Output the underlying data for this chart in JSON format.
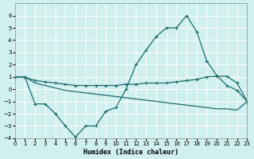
{
  "xlabel": "Humidex (Indice chaleur)",
  "background_color": "#cff0ee",
  "grid_color": "#ffffff",
  "line_color": "#1a6b6b",
  "xlim": [
    0,
    23
  ],
  "ylim": [
    -4,
    7
  ],
  "yticks": [
    -4,
    -3,
    -2,
    -1,
    0,
    1,
    2,
    3,
    4,
    5,
    6
  ],
  "xticks": [
    0,
    1,
    2,
    3,
    4,
    5,
    6,
    7,
    8,
    9,
    10,
    11,
    12,
    13,
    14,
    15,
    16,
    17,
    18,
    19,
    20,
    21,
    22,
    23
  ],
  "humidex_x": [
    0,
    1,
    2,
    3,
    4,
    5,
    6,
    7,
    8,
    9,
    10,
    11,
    12,
    13,
    14,
    15,
    16,
    17,
    18,
    19,
    20,
    21,
    22,
    23
  ],
  "humidex_y": [
    1.0,
    1.0,
    -1.2,
    -1.2,
    -2.0,
    -3.0,
    -3.9,
    -3.0,
    -3.0,
    -1.8,
    -1.5,
    0.0,
    2.0,
    3.2,
    4.3,
    5.0,
    5.0,
    6.0,
    4.7,
    2.3,
    1.1,
    0.3,
    -0.1,
    -1.0
  ],
  "upper_x": [
    0,
    1,
    2,
    3,
    4,
    5,
    6,
    7,
    8,
    9,
    10,
    11,
    12,
    13,
    14,
    15,
    16,
    17,
    18,
    19,
    20,
    21,
    22,
    23
  ],
  "upper_y": [
    1.0,
    1.0,
    0.7,
    0.6,
    0.5,
    0.4,
    0.3,
    0.3,
    0.3,
    0.3,
    0.3,
    0.4,
    0.4,
    0.5,
    0.5,
    0.5,
    0.6,
    0.7,
    0.8,
    1.0,
    1.05,
    1.05,
    0.5,
    -1.0
  ],
  "lower_x": [
    0,
    1,
    2,
    3,
    4,
    5,
    6,
    7,
    8,
    9,
    10,
    11,
    12,
    13,
    14,
    15,
    16,
    17,
    18,
    19,
    20,
    21,
    22,
    23
  ],
  "lower_y": [
    1.0,
    1.0,
    0.5,
    0.3,
    0.1,
    -0.1,
    -0.2,
    -0.3,
    -0.4,
    -0.5,
    -0.6,
    -0.7,
    -0.8,
    -0.9,
    -1.0,
    -1.1,
    -1.2,
    -1.3,
    -1.4,
    -1.5,
    -1.6,
    -1.6,
    -1.7,
    -1.0
  ]
}
